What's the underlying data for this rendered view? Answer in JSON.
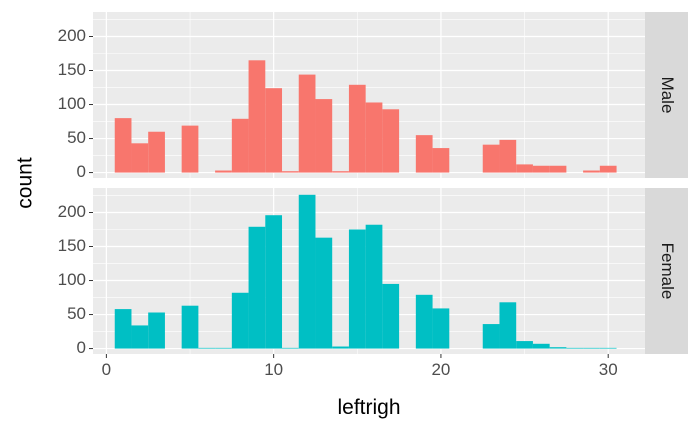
{
  "chart_data": {
    "type": "bar",
    "subtype": "faceted-histogram",
    "title": "",
    "xlabel": "leftrigh",
    "ylabel": "count",
    "xlim": [
      -0.8,
      32.2
    ],
    "ylim": [
      -8,
      236
    ],
    "xticks": [
      0,
      10,
      20,
      30
    ],
    "yticks": [
      0,
      50,
      100,
      150,
      200
    ],
    "grid": true,
    "binwidth": 1,
    "bin_centers": [
      1,
      2,
      3,
      4,
      5,
      6,
      7,
      8,
      9,
      10,
      11,
      12,
      13,
      14,
      15,
      16,
      17,
      18,
      19,
      20,
      21,
      22,
      23,
      24,
      25,
      26,
      27,
      28,
      29,
      30
    ],
    "series": [
      {
        "name": "Male",
        "color": "#F8766D",
        "values": [
          80,
          43,
          60,
          0,
          69,
          0,
          3,
          79,
          165,
          124,
          2,
          144,
          108,
          2,
          129,
          103,
          93,
          0,
          55,
          36,
          0,
          0,
          41,
          48,
          12,
          10,
          10,
          0,
          3,
          10
        ]
      },
      {
        "name": "Female",
        "color": "#00BFC4",
        "values": [
          58,
          34,
          53,
          0,
          63,
          1,
          1,
          82,
          179,
          196,
          1,
          226,
          163,
          3,
          175,
          182,
          95,
          0,
          79,
          59,
          0,
          0,
          36,
          68,
          11,
          7,
          2,
          1,
          1,
          1
        ]
      }
    ]
  }
}
